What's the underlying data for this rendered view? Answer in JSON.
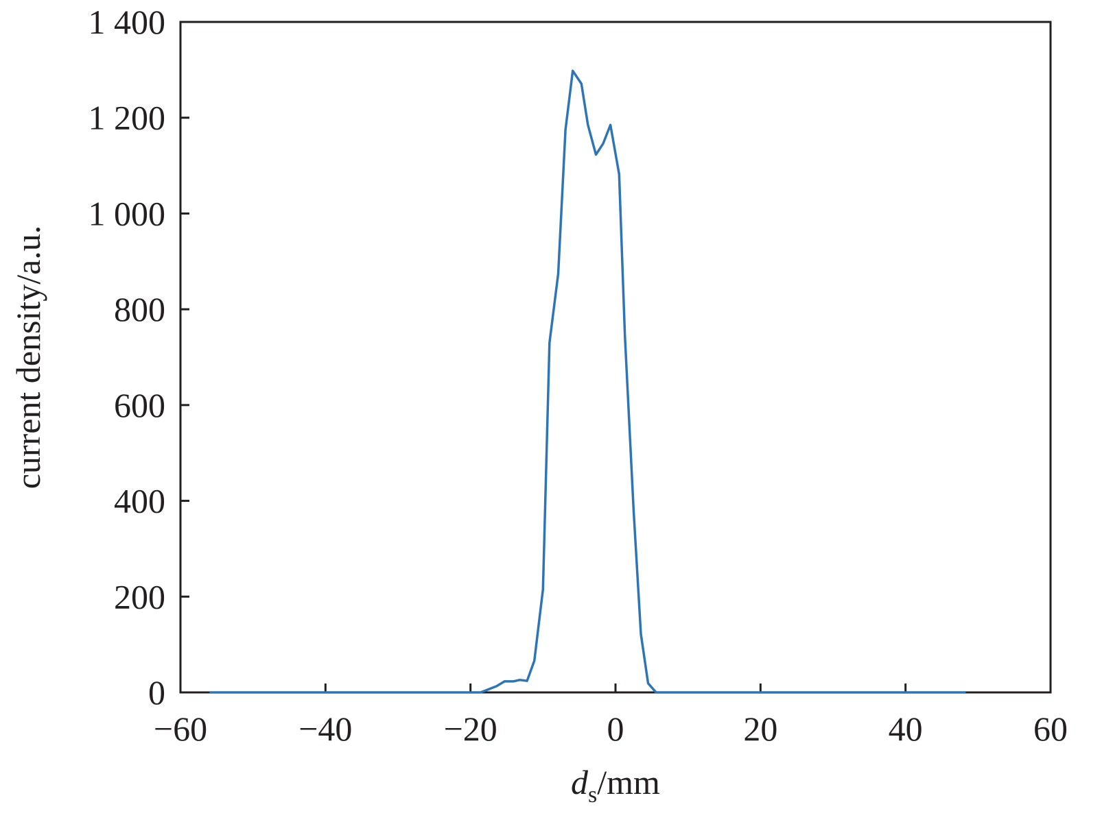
{
  "chart_data": {
    "type": "line",
    "title": "",
    "xlabel": "d_s/mm",
    "xlabel_main": "d",
    "xlabel_sub": "s",
    "xlabel_unit": "/mm",
    "ylabel": "current density/a.u.",
    "xlim": [
      -60,
      60
    ],
    "ylim": [
      0,
      1400
    ],
    "xticks": [
      -60,
      -40,
      -20,
      0,
      20,
      40,
      60
    ],
    "xtick_labels": [
      "−60",
      "−40",
      "−20",
      "0",
      "20",
      "40",
      "60"
    ],
    "yticks": [
      0,
      200,
      400,
      600,
      800,
      1000,
      1200,
      1400
    ],
    "ytick_labels": [
      "0",
      "200",
      "400",
      "600",
      "800",
      "1 000",
      "1 200",
      "1 400"
    ],
    "grid": false,
    "series": [
      {
        "color": "#2e75b6",
        "x": [
          -56.0,
          -18.6,
          -16.4,
          -15.3,
          -14.1,
          -13.2,
          -12.2,
          -11.2,
          -10.0,
          -9.1,
          -7.9,
          -6.9,
          -5.9,
          -4.7,
          -3.8,
          -2.7,
          -1.7,
          -0.7,
          0.5,
          1.3,
          2.5,
          3.5,
          4.5,
          5.6,
          48.3
        ],
        "y": [
          0,
          0,
          13,
          23,
          23,
          26,
          24,
          66,
          215,
          730,
          874,
          1175,
          1298,
          1271,
          1185,
          1123,
          1146,
          1185,
          1082,
          745,
          380,
          122,
          19,
          0,
          0
        ]
      }
    ]
  }
}
